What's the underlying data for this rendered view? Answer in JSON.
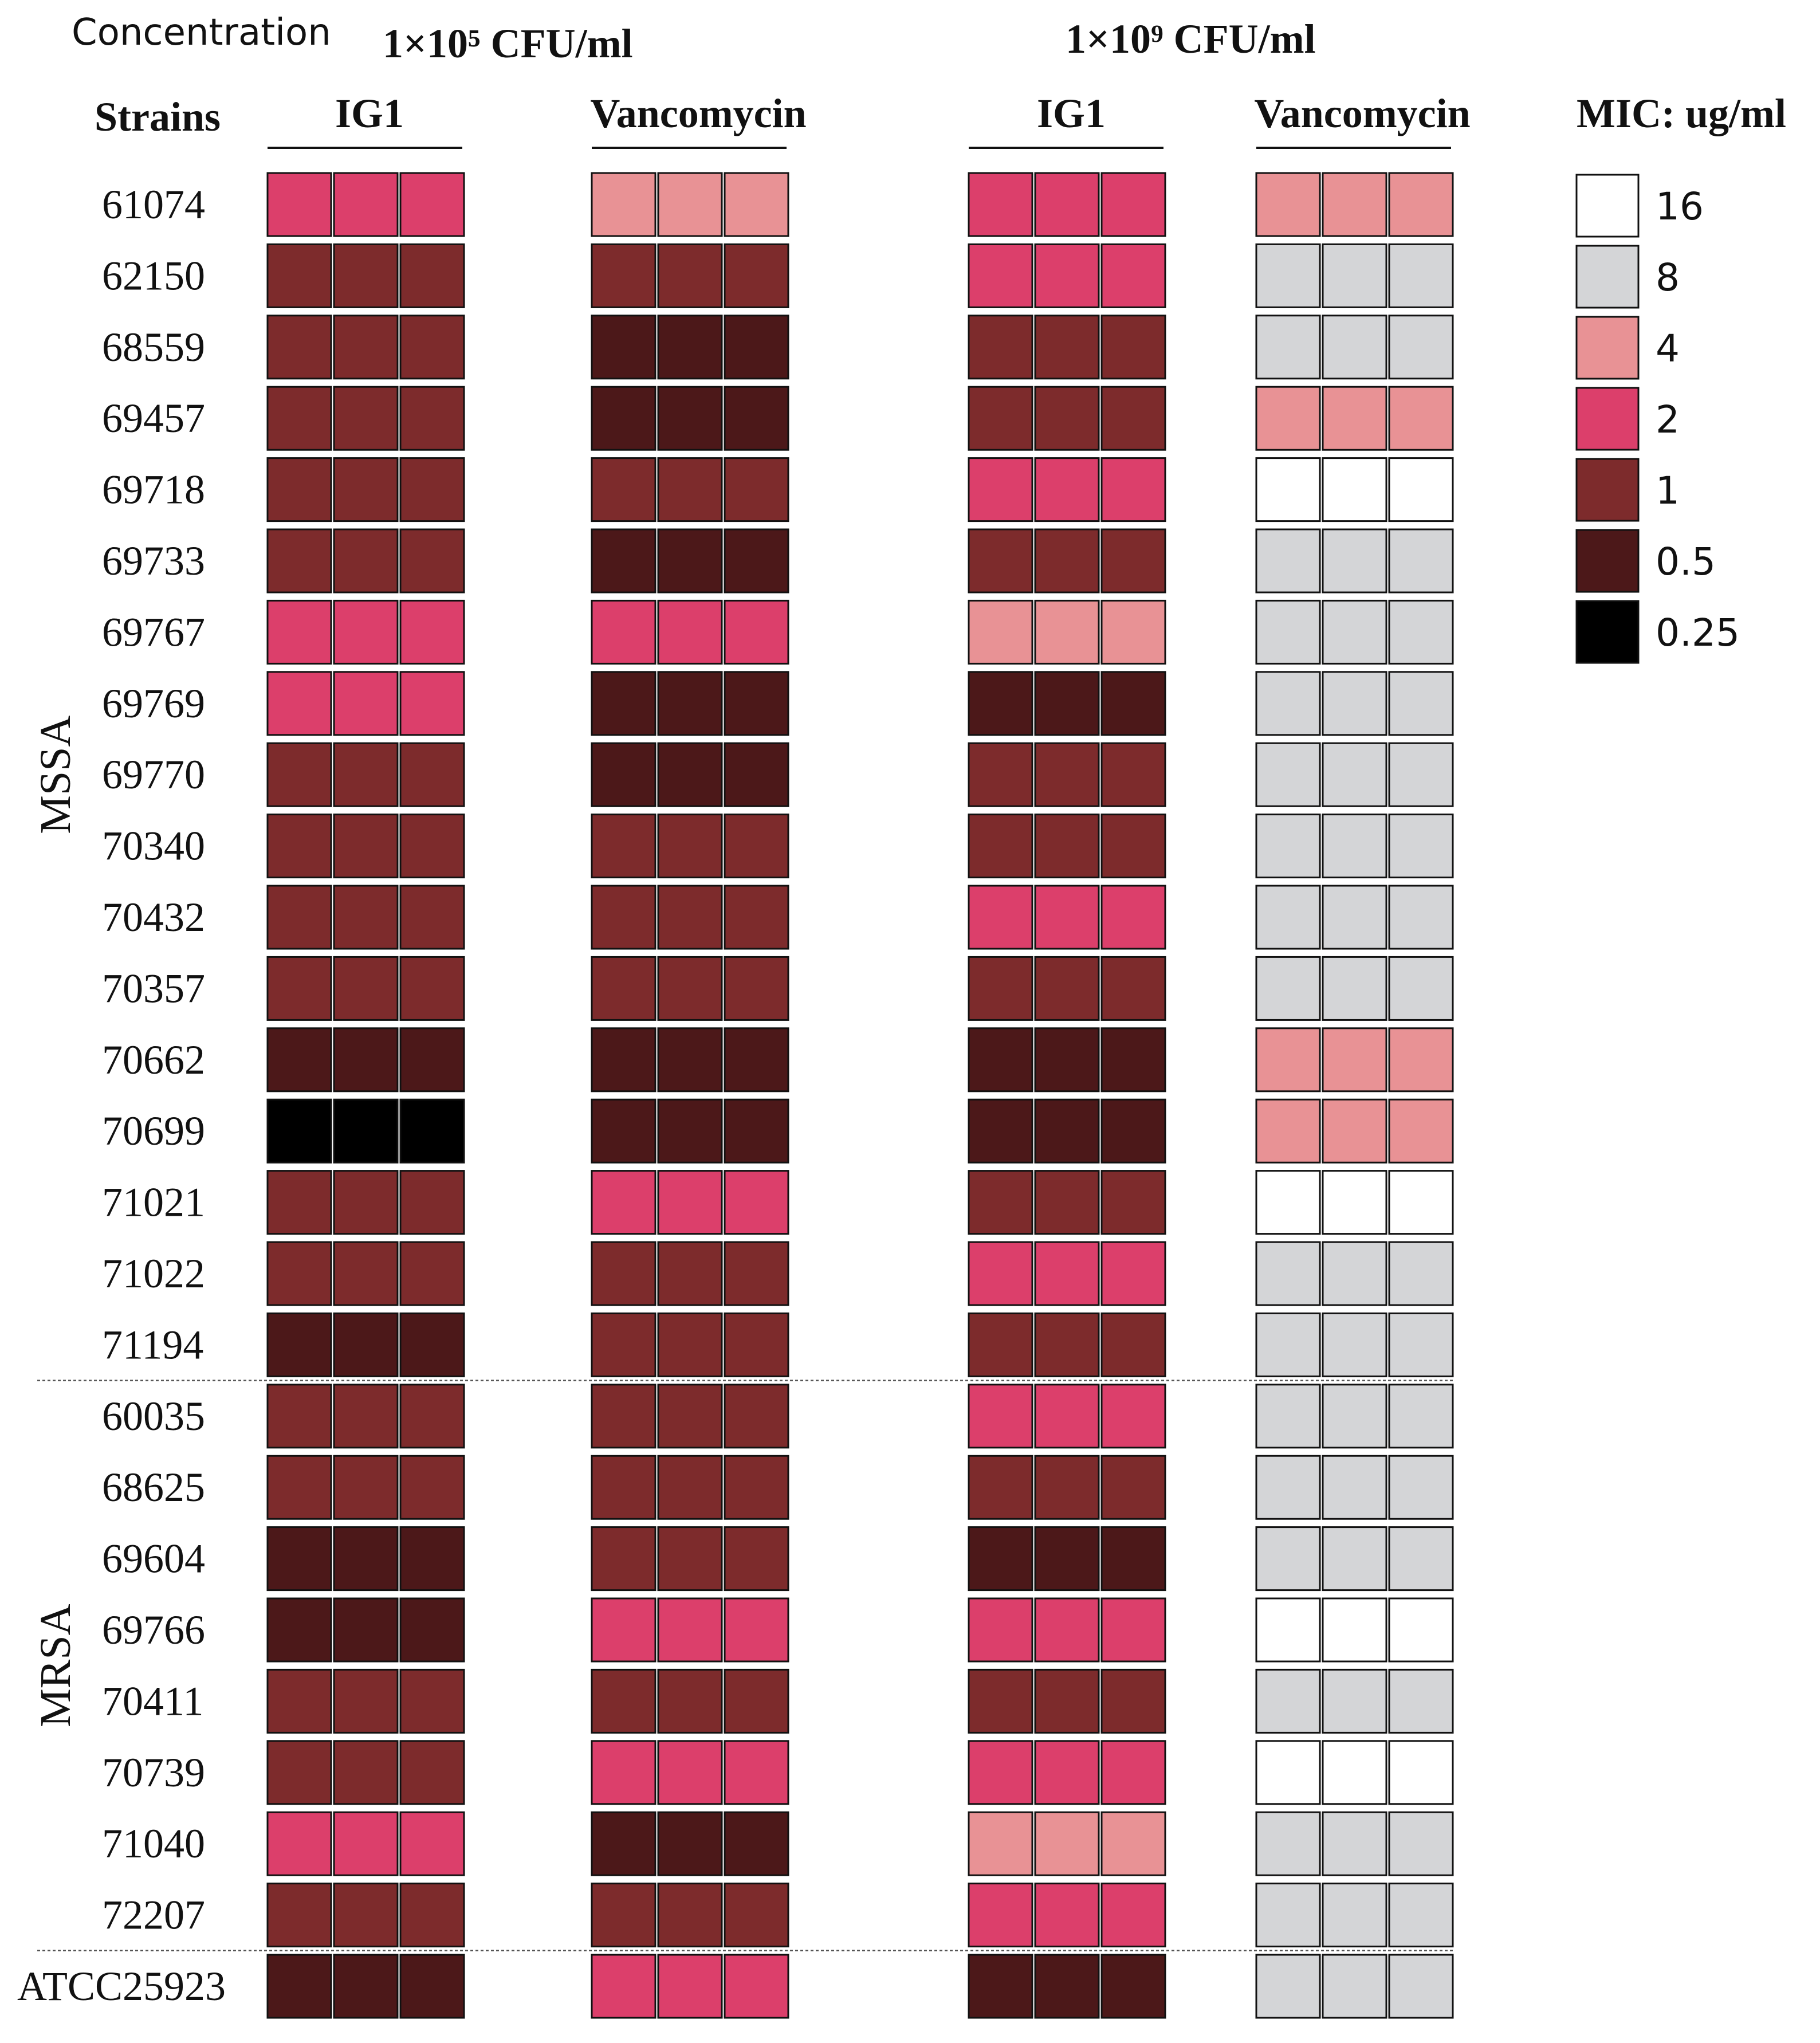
{
  "header": {
    "concentration_label": "Concentration",
    "conc_low": "1×10⁵ CFU/ml",
    "conc_high": "1×10⁹ CFU/ml",
    "strains_label": "Strains"
  },
  "legend": {
    "title": "MIC: ug/ml",
    "items": [
      {
        "label": "16",
        "color": "#ffffff"
      },
      {
        "label": "8",
        "color": "#d4d5d7"
      },
      {
        "label": "4",
        "color": "#e89295"
      },
      {
        "label": "2",
        "color": "#dc3f6b"
      },
      {
        "label": "1",
        "color": "#7d2b2c"
      },
      {
        "label": "0.5",
        "color": "#4c1819"
      },
      {
        "label": "0.25",
        "color": "#000000"
      }
    ]
  },
  "chart_data": {
    "type": "heatmap",
    "value_unit": "ug/ml",
    "replicates": 3,
    "groups": [
      {
        "name": "MSSA",
        "strains": [
          "61074",
          "62150",
          "68559",
          "69457",
          "69718",
          "69733",
          "69767",
          "69769",
          "69770",
          "70340",
          "70432",
          "70357",
          "70662",
          "70699",
          "71021",
          "71022",
          "71194"
        ]
      },
      {
        "name": "MRSA",
        "strains": [
          "60035",
          "68625",
          "69604",
          "69766",
          "70411",
          "70739",
          "71040",
          "72207"
        ]
      },
      {
        "name": "",
        "strains": [
          "ATCC25923"
        ]
      }
    ],
    "columns": [
      {
        "concentration": "1×10⁵ CFU/ml",
        "drug": "IG1",
        "values": [
          2,
          1,
          1,
          1,
          1,
          1,
          2,
          2,
          1,
          1,
          1,
          1,
          0.5,
          0.25,
          1,
          1,
          0.5,
          1,
          1,
          0.5,
          0.5,
          1,
          1,
          2,
          1,
          0.5
        ]
      },
      {
        "concentration": "1×10⁵ CFU/ml",
        "drug": "Vancomycin",
        "values": [
          4,
          1,
          0.5,
          0.5,
          1,
          0.5,
          2,
          0.5,
          0.5,
          1,
          1,
          1,
          0.5,
          0.5,
          2,
          1,
          1,
          1,
          1,
          1,
          2,
          1,
          2,
          0.5,
          1,
          2
        ]
      },
      {
        "concentration": "1×10⁹ CFU/ml",
        "drug": "IG1",
        "values": [
          2,
          2,
          1,
          1,
          2,
          1,
          4,
          0.5,
          1,
          1,
          2,
          1,
          0.5,
          0.5,
          1,
          2,
          1,
          2,
          1,
          0.5,
          2,
          1,
          2,
          4,
          2,
          0.5
        ]
      },
      {
        "concentration": "1×10⁹ CFU/ml",
        "drug": "Vancomycin",
        "values": [
          4,
          8,
          8,
          4,
          16,
          8,
          8,
          8,
          8,
          8,
          8,
          8,
          4,
          4,
          16,
          8,
          8,
          8,
          8,
          8,
          16,
          8,
          16,
          8,
          8,
          8
        ]
      }
    ]
  }
}
